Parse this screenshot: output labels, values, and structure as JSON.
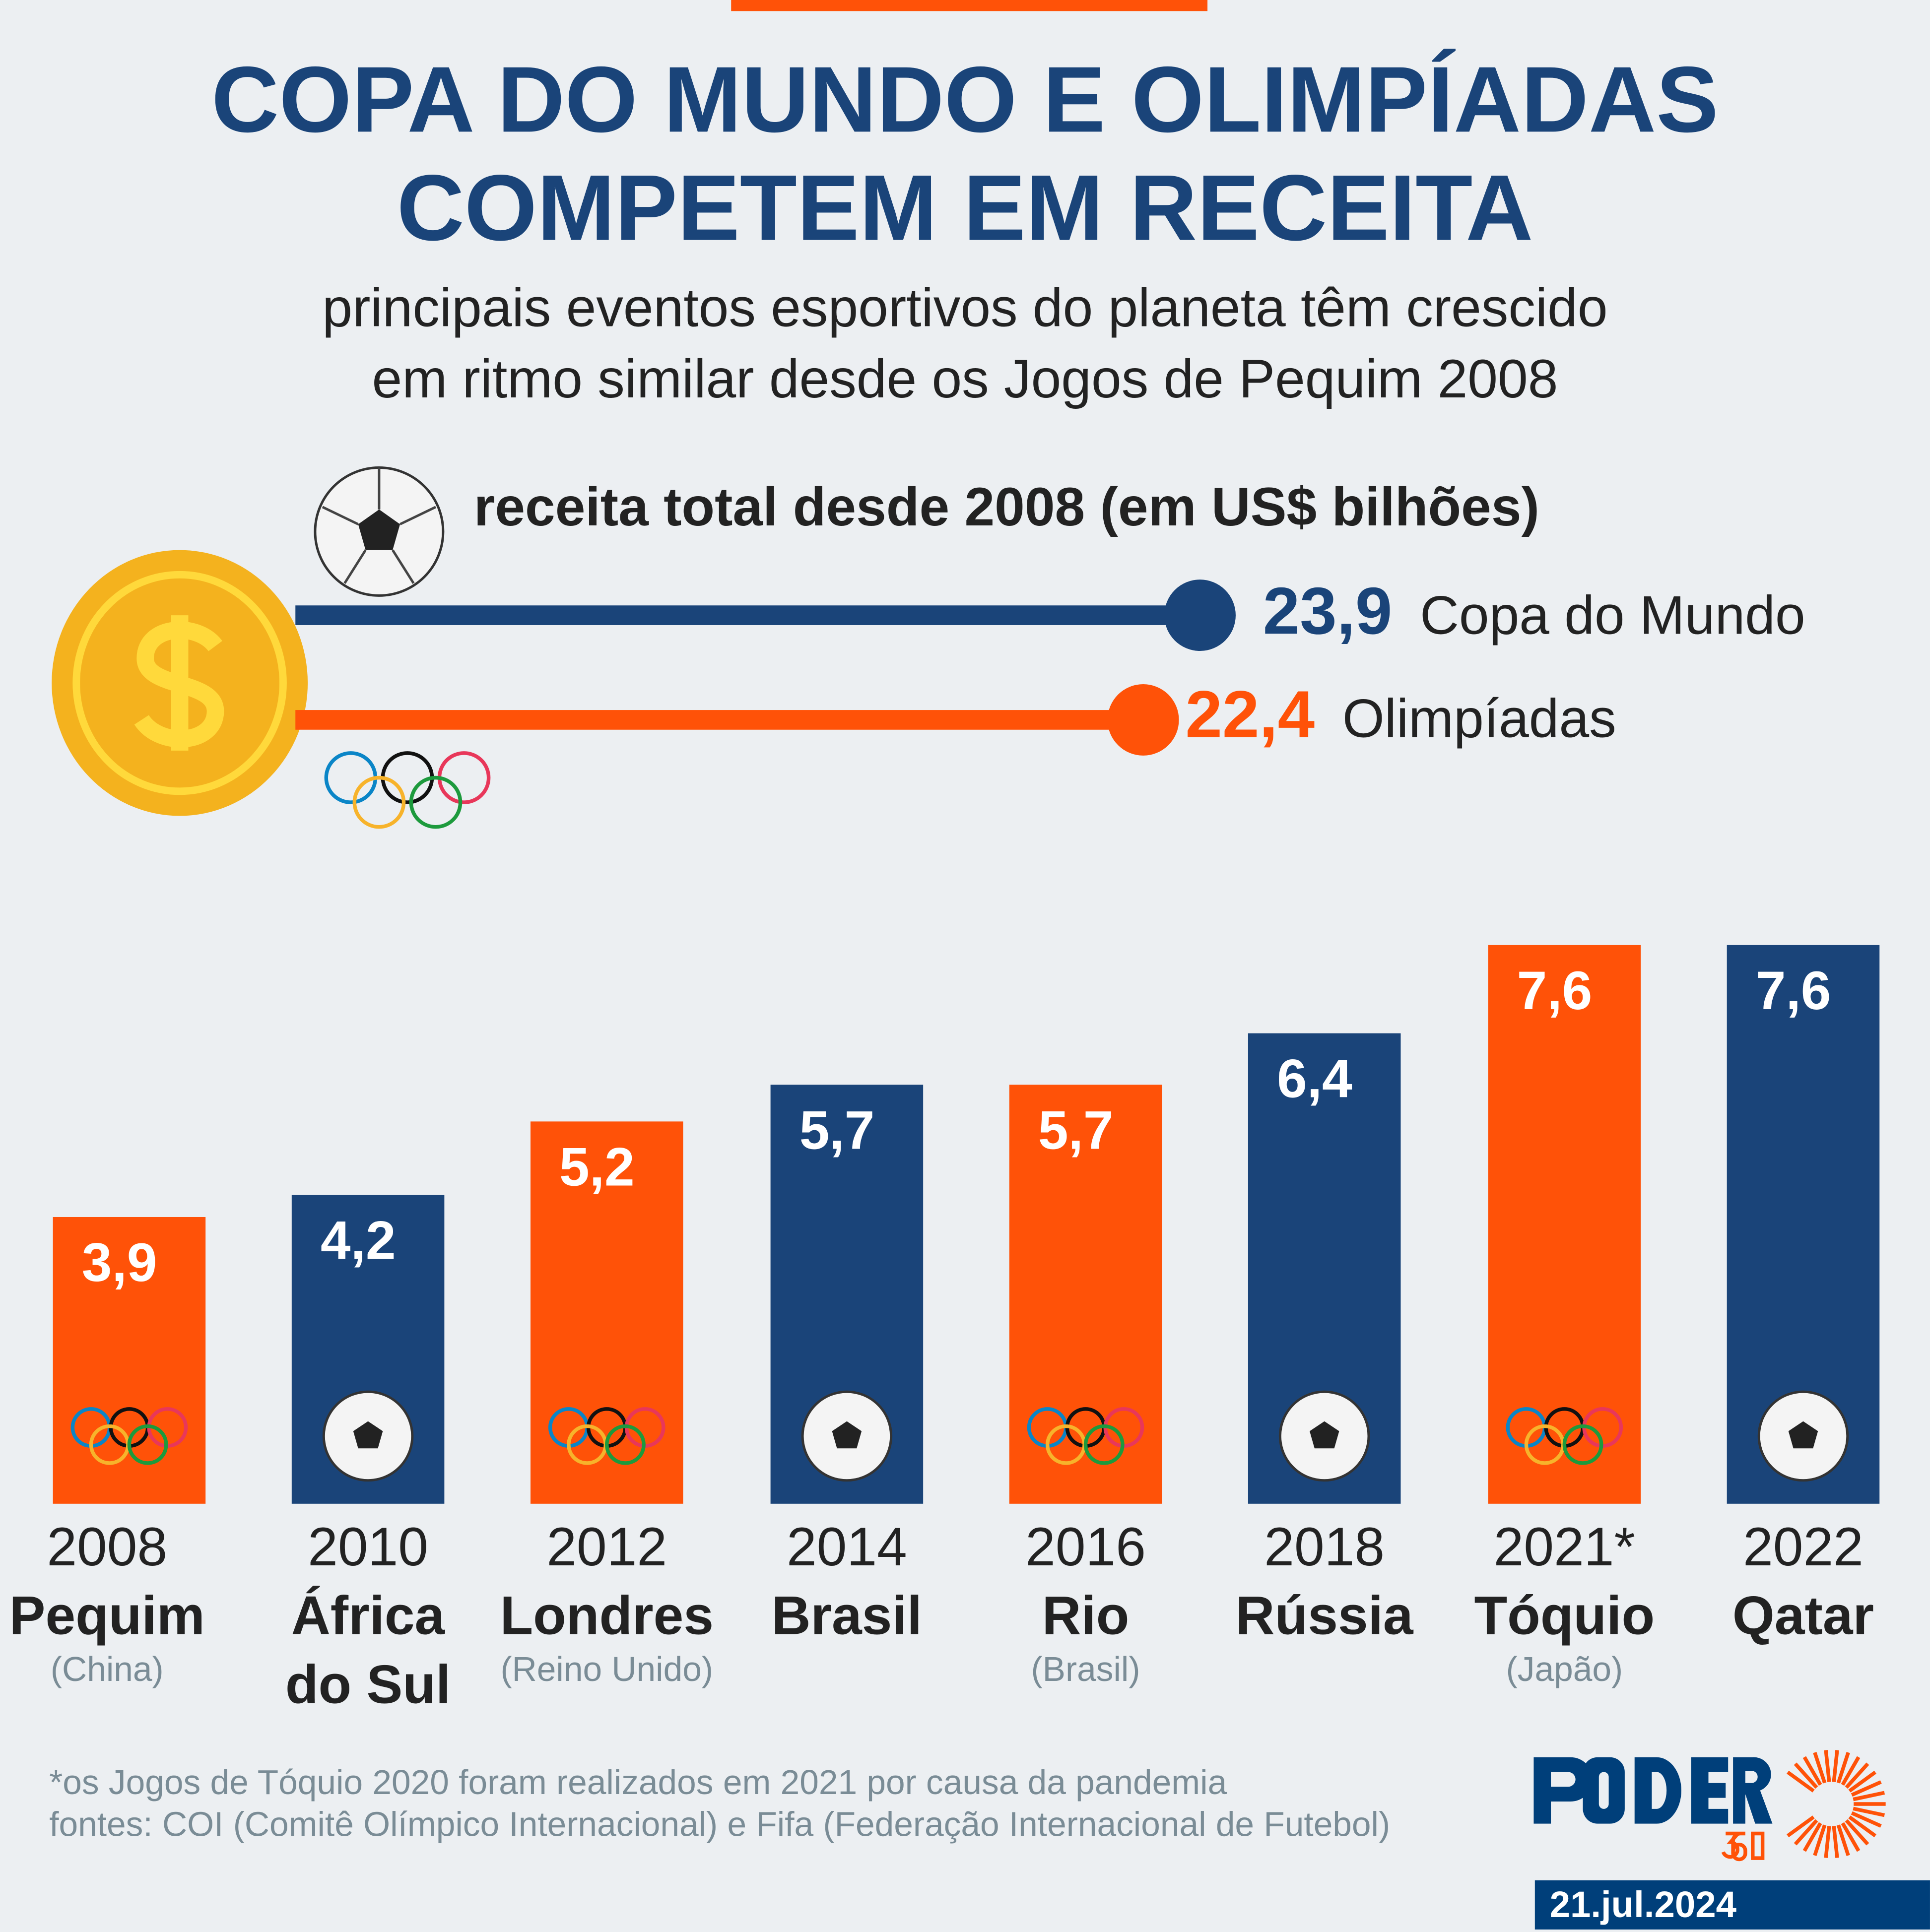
{
  "header": {
    "title_line1": "COPA DO MUNDO E OLIMPÍADAS",
    "title_line2": "COMPETEM EM RECEITA",
    "subtitle_line1": "principais eventos esportivos do planeta têm crescido",
    "subtitle_line2": "em ritmo similar desde os Jogos de Pequim 2008"
  },
  "totals": {
    "title": "receita total desde 2008 (em US$ bilhões)",
    "items": [
      {
        "label": "Copa do Mundo",
        "value": 23.9,
        "display": "23,9",
        "color": "#1a4479",
        "icon": "soccer-ball-icon"
      },
      {
        "label": "Olimpíadas",
        "value": 22.4,
        "display": "22,4",
        "color": "#ff5208",
        "icon": "olympic-rings-icon"
      }
    ],
    "decoration_icon": "dollar-coin-icon"
  },
  "chart_data": {
    "type": "bar",
    "categories": [
      "2008",
      "2010",
      "2012",
      "2014",
      "2016",
      "2018",
      "2021*",
      "2022"
    ],
    "values": [
      3.9,
      4.2,
      5.2,
      5.7,
      5.7,
      6.4,
      7.6,
      7.6
    ],
    "data_labels": [
      "3,9",
      "4,2",
      "5,2",
      "5,7",
      "5,7",
      "6,4",
      "7,6",
      "7,6"
    ],
    "event": [
      "Olimpíadas",
      "Copa do Mundo",
      "Olimpíadas",
      "Copa do Mundo",
      "Olimpíadas",
      "Copa do Mundo",
      "Olimpíadas",
      "Copa do Mundo"
    ],
    "cities": [
      "Pequim",
      "África do Sul",
      "Londres",
      "Brasil",
      "Rio",
      "Rússia",
      "Tóquio",
      "Qatar"
    ],
    "countries": [
      "(China)",
      "",
      "(Reino Unido)",
      "",
      "(Brasil)",
      "",
      "(Japão)",
      ""
    ],
    "colors": {
      "Olimpíadas": "#ff5208",
      "Copa do Mundo": "#1a4479"
    },
    "ylim": [
      0,
      7.6
    ],
    "grid": false
  },
  "footer": {
    "note": "*os Jogos de Tóquio 2020 foram realizados em 2021 por causa da pandemia",
    "sources": "fontes: COI (Comitê Olímpico Internacional) e Fifa (Federação Internacional de Futebol)"
  },
  "brand": {
    "logo": "PODER 360",
    "date": "21.jul.2024"
  }
}
